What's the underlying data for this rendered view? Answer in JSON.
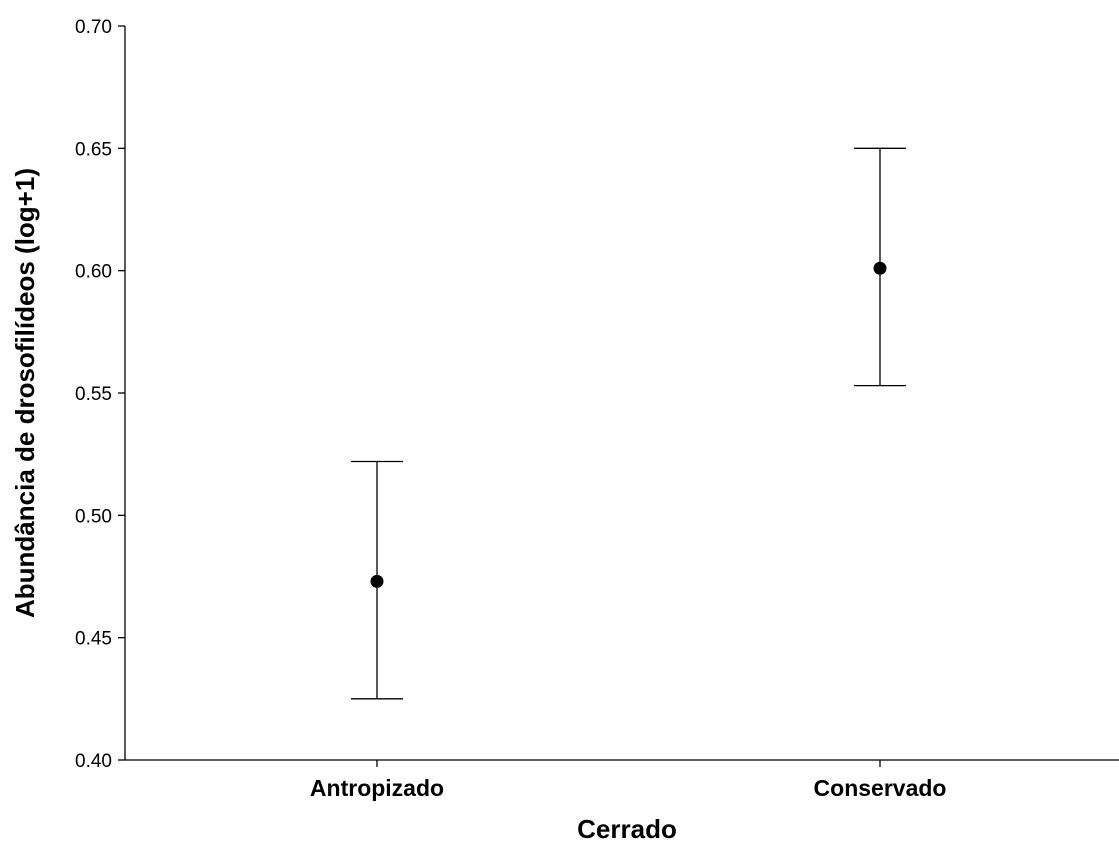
{
  "chart_data": {
    "type": "scatter",
    "subtype": "point-with-error-bars",
    "title": "",
    "xlabel": "Cerrado",
    "ylabel": "Abundância de drosofilídeos (log+1)",
    "categories": [
      "Antropizado",
      "Conservado"
    ],
    "series": [
      {
        "values": [
          0.473,
          0.601
        ],
        "error_low": [
          0.425,
          0.553
        ],
        "error_high": [
          0.522,
          0.65
        ]
      }
    ],
    "ylim": [
      0.4,
      0.7
    ],
    "yticks": [
      "0.40",
      "0.45",
      "0.50",
      "0.55",
      "0.60",
      "0.65",
      "0.70"
    ],
    "grid": false,
    "legend": "none",
    "marker_color": "#000000"
  }
}
